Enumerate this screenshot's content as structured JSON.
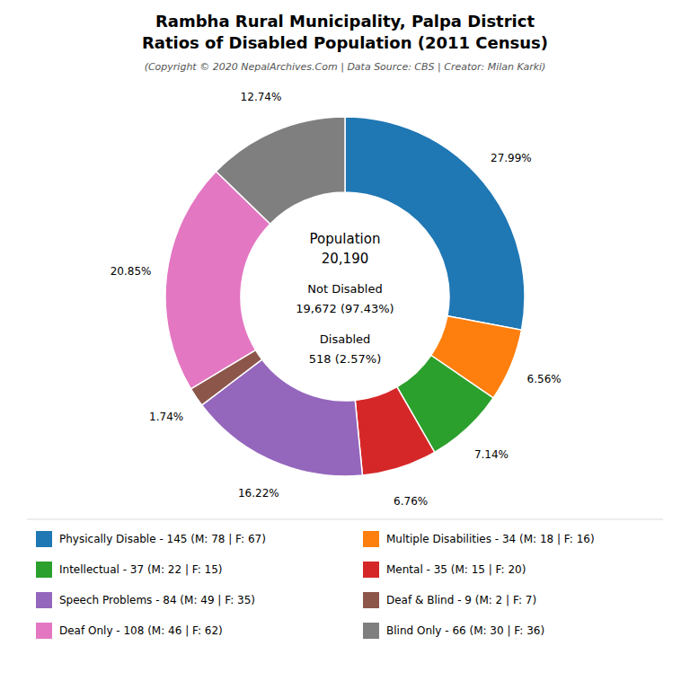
{
  "chart_data": {
    "type": "pie",
    "title": [
      "Rambha Rural Municipality, Palpa District",
      "Ratios of Disabled Population (2011 Census)"
    ],
    "subtitle": "(Copyright © 2020 NepalArchives.Com | Data Source: CBS | Creator: Milan Karki)",
    "annotations": [
      "Population",
      "20,190",
      "Not Disabled",
      "19,672 (97.43%)",
      "Disabled",
      "518 (2.57%)"
    ],
    "categories": [
      "Physically Disable - 145 (M: 78 | F: 67)",
      "Multiple Disabilities - 34 (M: 18 | F: 16)",
      "Intellectual - 37 (M: 22 | F: 15)",
      "Mental - 35 (M: 15 | F: 20)",
      "Speech Problems - 84 (M: 49 | F: 35)",
      "Deaf & Blind - 9 (M: 2 | F: 7)",
      "Deaf Only - 108 (M: 46 | F: 62)",
      "Blind Only - 66 (M: 30 | F: 36)"
    ],
    "values": [
      27.99,
      6.56,
      7.14,
      6.76,
      16.22,
      1.74,
      20.85,
      12.74
    ],
    "value_labels": [
      "27.99%",
      "6.56%",
      "7.14%",
      "6.76%",
      "16.22%",
      "1.74%",
      "20.85%",
      "12.74%"
    ],
    "data_labels": true,
    "legend": "bottom"
  }
}
